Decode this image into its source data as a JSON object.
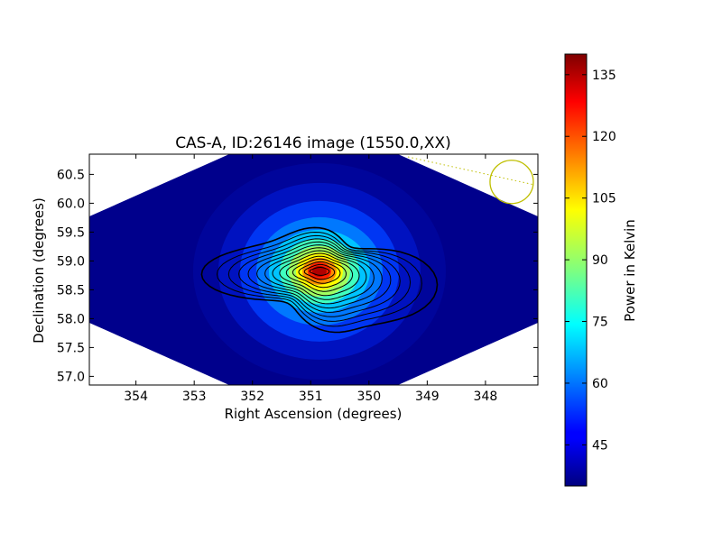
{
  "chart_data": {
    "type": "heatmap",
    "title": "CAS-A, ID:26146 image (1550.0,XX)",
    "xlabel": "Right Ascension (degrees)",
    "ylabel": "Declination (degrees)",
    "x_reversed": true,
    "xlim": [
      354.8,
      347.1
    ],
    "ylim": [
      56.85,
      60.85
    ],
    "x_ticks": [
      "354",
      "353",
      "352",
      "351",
      "350",
      "349",
      "348"
    ],
    "y_ticks": [
      "57.0",
      "57.5",
      "58.0",
      "58.5",
      "59.0",
      "59.5",
      "60.0",
      "60.5"
    ],
    "colorbar": {
      "label": "Power in Kelvin",
      "range": [
        35,
        140
      ],
      "ticks": [
        "45",
        "60",
        "75",
        "90",
        "105",
        "120",
        "135"
      ],
      "colormap": "jet"
    },
    "source": {
      "ra": 350.85,
      "dec": 58.82,
      "peak": 140
    },
    "background_level": 40,
    "contour_levels": 14,
    "beam_circle": {
      "ra": 347.55,
      "dec": 60.37
    },
    "grid": false,
    "colors": {
      "contour": "#000000",
      "beam": "#bfbf00",
      "frame": "#000000"
    }
  }
}
